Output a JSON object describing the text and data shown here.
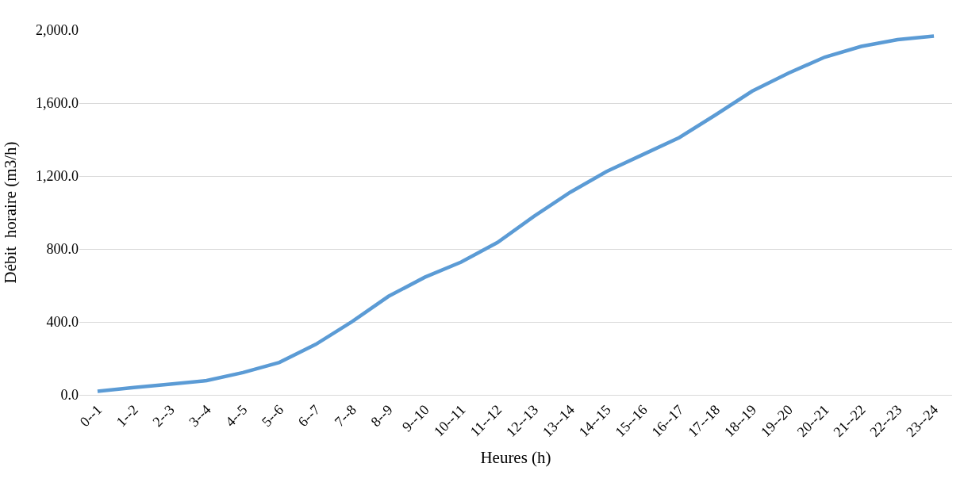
{
  "chart_data": {
    "type": "line",
    "xlabel": "Heures (h)",
    "ylabel": "Débit  horaire (m3/h)",
    "categories": [
      "0--1",
      "1--2",
      "2--3",
      "3--4",
      "4--5",
      "5--6",
      "6--7",
      "7--8",
      "8--9",
      "9--10",
      "10--11",
      "11--12",
      "12--13",
      "13--14",
      "14--15",
      "15--16",
      "16--17",
      "17--18",
      "18--19",
      "19--20",
      "20--21",
      "21--22",
      "22--23",
      "23--24"
    ],
    "series": [
      {
        "color": "#5b9bd5",
        "values": [
          20,
          40,
          59,
          78,
          122,
          178,
          277,
          402,
          540,
          645,
          728,
          836,
          979,
          1111,
          1225,
          1318,
          1411,
          1536,
          1665,
          1764,
          1852,
          1911,
          1948,
          1967
        ]
      }
    ],
    "ylim": [
      0,
      2000
    ],
    "yticks": [
      {
        "value": 0,
        "label": "0.0"
      },
      {
        "value": 400,
        "label": "400.0"
      },
      {
        "value": 800,
        "label": "800.0"
      },
      {
        "value": 1200,
        "label": "1,200.0"
      },
      {
        "value": 1600,
        "label": "1,600.0"
      },
      {
        "value": 2000,
        "label": "2,000.0"
      }
    ],
    "grid": "y",
    "marker": "none",
    "line_style": "solid"
  }
}
